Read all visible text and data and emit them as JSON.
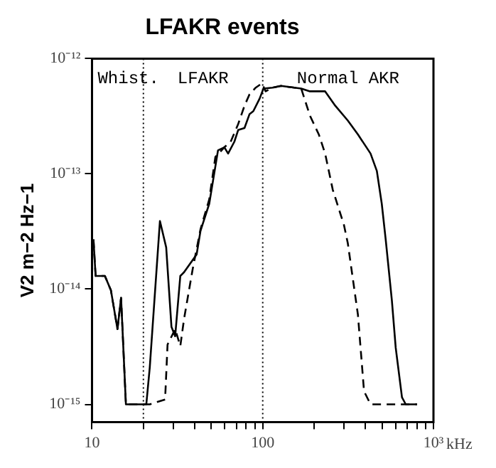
{
  "chart_data": {
    "type": "line",
    "title": "LFAKR events",
    "ylabel": "V2 m−2 Hz−1",
    "log": "xy",
    "grid": false,
    "legend": false,
    "marker": "none",
    "xlim": [
      10,
      1000
    ],
    "ylim": [
      7e-16,
      1e-12
    ],
    "xticks": [
      {
        "value": 10,
        "label": "10"
      },
      {
        "value": 20,
        "label": null
      },
      {
        "value": 30,
        "label": null
      },
      {
        "value": 40,
        "label": null
      },
      {
        "value": 50,
        "label": null
      },
      {
        "value": 60,
        "label": null
      },
      {
        "value": 70,
        "label": null
      },
      {
        "value": 80,
        "label": null
      },
      {
        "value": 90,
        "label": null
      },
      {
        "value": 100,
        "label": "100"
      },
      {
        "value": 200,
        "label": null
      },
      {
        "value": 300,
        "label": null
      },
      {
        "value": 400,
        "label": null
      },
      {
        "value": 500,
        "label": null
      },
      {
        "value": 600,
        "label": null
      },
      {
        "value": 700,
        "label": null
      },
      {
        "value": 800,
        "label": null
      },
      {
        "value": 900,
        "label": null
      },
      {
        "value": 1000,
        "label": "10³"
      }
    ],
    "xlabel": "kHz",
    "yticks": [
      {
        "value": 1e-15,
        "label": "10⁻¹⁵"
      },
      {
        "value": 1e-14,
        "label": "10⁻¹⁴"
      },
      {
        "value": 1e-13,
        "label": "10⁻¹³"
      },
      {
        "value": 1e-12,
        "label": "10⁻¹²"
      }
    ],
    "ref_lines": [
      {
        "axis": "x",
        "value": 20,
        "line_style": "dotted",
        "color": "#000000"
      },
      {
        "axis": "x",
        "value": 100,
        "line_style": "dotted",
        "color": "#000000"
      }
    ],
    "annotations": [
      "Whist.",
      "LFAKR",
      "Normal AKR"
    ],
    "series": [
      {
        "color": "#000000",
        "line_style": "solid",
        "x": [
          10.2,
          10.5,
          11.9,
          12.9,
          14.1,
          14.8,
          15.8,
          20.8,
          21.8,
          25.0,
          27.2,
          29.2,
          30.7,
          32.9,
          34.6,
          41.0,
          43.2,
          48.6,
          54.7,
          59.6,
          62.7,
          68.2,
          71.8,
          78.2,
          83.7,
          88.1,
          95.9,
          101,
          114,
          128,
          168,
          189,
          232,
          266,
          315,
          361,
          428,
          466,
          498,
          525,
          571,
          601,
          654,
          688,
          802
        ],
        "values": [
          2.7e-14,
          1.3e-14,
          1.3e-14,
          9.8e-15,
          4.5e-15,
          8.4e-15,
          1e-15,
          1e-15,
          2.1e-15,
          3.9e-14,
          2.3e-14,
          4.7e-15,
          3.9e-15,
          1.3e-14,
          1.4e-14,
          2e-14,
          3.2e-14,
          5.5e-14,
          1.6e-13,
          1.7e-13,
          1.5e-13,
          1.9e-13,
          2.4e-13,
          2.5e-13,
          3.3e-13,
          3.5e-13,
          4.5e-13,
          5.5e-13,
          5.6e-13,
          5.8e-13,
          5.5e-13,
          5.2e-13,
          5.2e-13,
          3.9e-13,
          2.9e-13,
          2.2e-13,
          1.5e-13,
          1.06e-13,
          5.5e-14,
          2.7e-14,
          7.9e-15,
          3.1e-15,
          1.15e-15,
          1e-15,
          1e-15
        ]
      },
      {
        "color": "#000000",
        "line_style": "dashed",
        "x": [
          10.2,
          10.5,
          11.9,
          12.9,
          14.1,
          14.8,
          15.8,
          21.8,
          26.8,
          27.7,
          30.7,
          32.9,
          34.6,
          38.9,
          43.2,
          48.6,
          52.8,
          59.6,
          64.9,
          71.8,
          78.2,
          83.7,
          91.0,
          99,
          104,
          114,
          128,
          168,
          189,
          213,
          232,
          257,
          299,
          315,
          361,
          392,
          428,
          802
        ],
        "values": [
          2.7e-14,
          1.3e-14,
          1.3e-14,
          9.8e-15,
          4.5e-15,
          8.4e-15,
          1e-15,
          1e-15,
          1.1e-15,
          3.3e-15,
          4.5e-15,
          3.2e-15,
          5.5e-15,
          1.5e-14,
          3.3e-14,
          6e-14,
          1.4e-13,
          1.7e-13,
          1.9e-13,
          2.7e-13,
          3.9e-13,
          4.9e-13,
          5.6e-13,
          6.1e-13,
          5.2e-13,
          5.6e-13,
          5.8e-13,
          5.5e-13,
          3.2e-13,
          2.2e-13,
          1.5e-13,
          7.3e-14,
          3.6e-14,
          2.5e-14,
          6e-15,
          1.3e-15,
          1e-15,
          1e-15
        ]
      }
    ]
  }
}
